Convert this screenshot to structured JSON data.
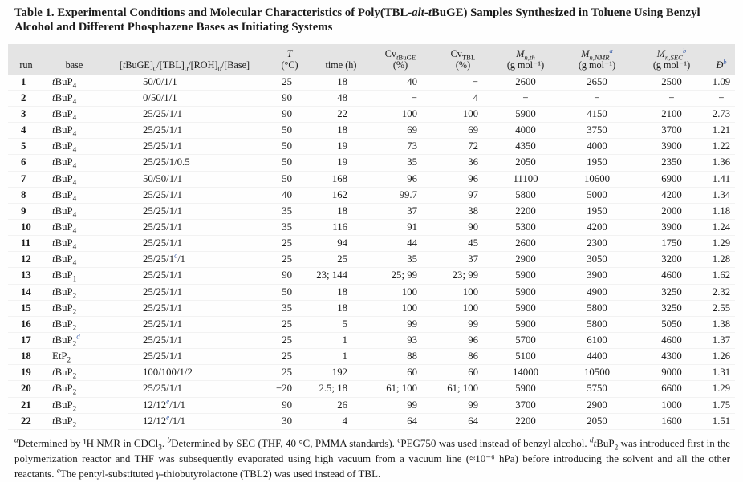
{
  "colors": {
    "accent_blue": "#3b5ea8",
    "header_bg": "#e4e4e4"
  },
  "title": {
    "segments": [
      [
        "Table 1. Experimental Conditions and Molecular Characteristics of Poly(TBL-",
        ""
      ],
      [
        "alt",
        "i"
      ],
      [
        "-",
        ""
      ],
      [
        "t",
        "i"
      ],
      [
        "BuGE) Samples Synthesized in Toluene Using Benzyl Alcohol and Different Phosphazene Bases as Initiating Systems",
        ""
      ]
    ]
  },
  "table": {
    "columns": [
      {
        "key": "run",
        "lines": [
          [
            [
              "run",
              ""
            ]
          ]
        ]
      },
      {
        "key": "base",
        "lines": [
          [
            [
              "base",
              ""
            ]
          ]
        ]
      },
      {
        "key": "ratio",
        "lines": [
          [
            [
              "[",
              ""
            ],
            [
              "t",
              "i"
            ],
            [
              "BuGE]",
              ""
            ],
            [
              "0",
              "sub"
            ],
            [
              "/[TBL]",
              ""
            ],
            [
              "0",
              "sub"
            ],
            [
              "/[ROH]",
              ""
            ],
            [
              "0",
              "sub"
            ],
            [
              "/[Base]",
              ""
            ]
          ]
        ]
      },
      {
        "key": "temp",
        "lines": [
          [
            [
              "T",
              "i"
            ]
          ],
          [
            [
              "(°C)",
              ""
            ]
          ]
        ]
      },
      {
        "key": "time",
        "lines": [
          [
            [
              "time (h)",
              ""
            ]
          ]
        ]
      },
      {
        "key": "cv_tbuge",
        "lines": [
          [
            [
              "Cv",
              ""
            ],
            [
              "t",
              "subi"
            ],
            [
              "BuGE",
              "sub"
            ]
          ],
          [
            [
              "(%)",
              ""
            ]
          ]
        ]
      },
      {
        "key": "cv_tbl",
        "lines": [
          [
            [
              "Cv",
              ""
            ],
            [
              "TBL",
              "sub"
            ]
          ],
          [
            [
              "(%)",
              ""
            ]
          ]
        ]
      },
      {
        "key": "mn_th",
        "lines": [
          [
            [
              "M",
              "i"
            ],
            [
              "n,th",
              "subi"
            ]
          ],
          [
            [
              "(g mol⁻¹)",
              ""
            ]
          ]
        ]
      },
      {
        "key": "mn_nmr",
        "lines": [
          [
            [
              "M",
              "i"
            ],
            [
              "n,NMR",
              "subi"
            ],
            [
              "a",
              "supb"
            ]
          ],
          [
            [
              "(g mol⁻¹)",
              ""
            ]
          ]
        ]
      },
      {
        "key": "mn_sec",
        "lines": [
          [
            [
              "M",
              "i"
            ],
            [
              "n,SEC",
              "subi"
            ],
            [
              "b",
              "supb"
            ]
          ],
          [
            [
              "(g mol⁻¹)",
              ""
            ]
          ]
        ]
      },
      {
        "key": "dispersity",
        "lines": [
          [
            [
              "Đ",
              "i"
            ],
            [
              "b",
              "supb"
            ]
          ]
        ]
      }
    ],
    "rows": [
      [
        "1",
        [
          [
            "t",
            "i"
          ],
          [
            "BuP",
            ""
          ],
          [
            "4",
            "sub"
          ]
        ],
        [
          [
            "50/0/1/1",
            ""
          ]
        ],
        "25",
        "18",
        "40",
        "−",
        "2600",
        "2650",
        "2500",
        "1.09"
      ],
      [
        "2",
        [
          [
            "t",
            "i"
          ],
          [
            "BuP",
            ""
          ],
          [
            "4",
            "sub"
          ]
        ],
        [
          [
            "0/50/1/1",
            ""
          ]
        ],
        "90",
        "48",
        "−",
        "4",
        "−",
        "−",
        "−",
        "−"
      ],
      [
        "3",
        [
          [
            "t",
            "i"
          ],
          [
            "BuP",
            ""
          ],
          [
            "4",
            "sub"
          ]
        ],
        [
          [
            "25/25/1/1",
            ""
          ]
        ],
        "90",
        "22",
        "100",
        "100",
        "5900",
        "4150",
        "2100",
        "2.73"
      ],
      [
        "4",
        [
          [
            "t",
            "i"
          ],
          [
            "BuP",
            ""
          ],
          [
            "4",
            "sub"
          ]
        ],
        [
          [
            "25/25/1/1",
            ""
          ]
        ],
        "50",
        "18",
        "69",
        "69",
        "4000",
        "3750",
        "3700",
        "1.21"
      ],
      [
        "5",
        [
          [
            "t",
            "i"
          ],
          [
            "BuP",
            ""
          ],
          [
            "4",
            "sub"
          ]
        ],
        [
          [
            "25/25/1/1",
            ""
          ]
        ],
        "50",
        "19",
        "73",
        "72",
        "4350",
        "4000",
        "3900",
        "1.22"
      ],
      [
        "6",
        [
          [
            "t",
            "i"
          ],
          [
            "BuP",
            ""
          ],
          [
            "4",
            "sub"
          ]
        ],
        [
          [
            "25/25/1/0.5",
            ""
          ]
        ],
        "50",
        "19",
        "35",
        "36",
        "2050",
        "1950",
        "2350",
        "1.36"
      ],
      [
        "7",
        [
          [
            "t",
            "i"
          ],
          [
            "BuP",
            ""
          ],
          [
            "4",
            "sub"
          ]
        ],
        [
          [
            "50/50/1/1",
            ""
          ]
        ],
        "50",
        "168",
        "96",
        "96",
        "11100",
        "10600",
        "6900",
        "1.41"
      ],
      [
        "8",
        [
          [
            "t",
            "i"
          ],
          [
            "BuP",
            ""
          ],
          [
            "4",
            "sub"
          ]
        ],
        [
          [
            "25/25/1/1",
            ""
          ]
        ],
        "40",
        "162",
        "99.7",
        "97",
        "5800",
        "5000",
        "4200",
        "1.34"
      ],
      [
        "9",
        [
          [
            "t",
            "i"
          ],
          [
            "BuP",
            ""
          ],
          [
            "4",
            "sub"
          ]
        ],
        [
          [
            "25/25/1/1",
            ""
          ]
        ],
        "35",
        "18",
        "37",
        "38",
        "2200",
        "1950",
        "2000",
        "1.18"
      ],
      [
        "10",
        [
          [
            "t",
            "i"
          ],
          [
            "BuP",
            ""
          ],
          [
            "4",
            "sub"
          ]
        ],
        [
          [
            "25/25/1/1",
            ""
          ]
        ],
        "35",
        "116",
        "91",
        "90",
        "5300",
        "4200",
        "3900",
        "1.24"
      ],
      [
        "11",
        [
          [
            "t",
            "i"
          ],
          [
            "BuP",
            ""
          ],
          [
            "4",
            "sub"
          ]
        ],
        [
          [
            "25/25/1/1",
            ""
          ]
        ],
        "25",
        "94",
        "44",
        "45",
        "2600",
        "2300",
        "1750",
        "1.29"
      ],
      [
        "12",
        [
          [
            "t",
            "i"
          ],
          [
            "BuP",
            ""
          ],
          [
            "4",
            "sub"
          ]
        ],
        [
          [
            "25/25/1",
            ""
          ],
          [
            "c",
            "supb"
          ],
          [
            "/1",
            ""
          ]
        ],
        "25",
        "25",
        "35",
        "37",
        "2900",
        "3050",
        "3200",
        "1.28"
      ],
      [
        "13",
        [
          [
            "t",
            "i"
          ],
          [
            "BuP",
            ""
          ],
          [
            "1",
            "sub"
          ]
        ],
        [
          [
            "25/25/1/1",
            ""
          ]
        ],
        "90",
        "23; 144",
        "25; 99",
        "23; 99",
        "5900",
        "3900",
        "4600",
        "1.62"
      ],
      [
        "14",
        [
          [
            "t",
            "i"
          ],
          [
            "BuP",
            ""
          ],
          [
            "2",
            "sub"
          ]
        ],
        [
          [
            "25/25/1/1",
            ""
          ]
        ],
        "50",
        "18",
        "100",
        "100",
        "5900",
        "4900",
        "3250",
        "2.32"
      ],
      [
        "15",
        [
          [
            "t",
            "i"
          ],
          [
            "BuP",
            ""
          ],
          [
            "2",
            "sub"
          ]
        ],
        [
          [
            "25/25/1/1",
            ""
          ]
        ],
        "35",
        "18",
        "100",
        "100",
        "5900",
        "5800",
        "3250",
        "2.55"
      ],
      [
        "16",
        [
          [
            "t",
            "i"
          ],
          [
            "BuP",
            ""
          ],
          [
            "2",
            "sub"
          ]
        ],
        [
          [
            "25/25/1/1",
            ""
          ]
        ],
        "25",
        "5",
        "99",
        "99",
        "5900",
        "5800",
        "5050",
        "1.38"
      ],
      [
        "17",
        [
          [
            "t",
            "i"
          ],
          [
            "BuP",
            ""
          ],
          [
            "2",
            "sub"
          ],
          [
            "d",
            "supb"
          ]
        ],
        [
          [
            "25/25/1/1",
            ""
          ]
        ],
        "25",
        "1",
        "93",
        "96",
        "5700",
        "6100",
        "4600",
        "1.37"
      ],
      [
        "18",
        [
          [
            "EtP",
            ""
          ],
          [
            "2",
            "sub"
          ]
        ],
        [
          [
            "25/25/1/1",
            ""
          ]
        ],
        "25",
        "1",
        "88",
        "86",
        "5100",
        "4400",
        "4300",
        "1.26"
      ],
      [
        "19",
        [
          [
            "t",
            "i"
          ],
          [
            "BuP",
            ""
          ],
          [
            "2",
            "sub"
          ]
        ],
        [
          [
            "100/100/1/2",
            ""
          ]
        ],
        "25",
        "192",
        "60",
        "60",
        "14000",
        "10500",
        "9000",
        "1.31"
      ],
      [
        "20",
        [
          [
            "t",
            "i"
          ],
          [
            "BuP",
            ""
          ],
          [
            "2",
            "sub"
          ]
        ],
        [
          [
            "25/25/1/1",
            ""
          ]
        ],
        "−20",
        "2.5; 18",
        "61; 100",
        "61; 100",
        "5900",
        "5750",
        "6600",
        "1.29"
      ],
      [
        "21",
        [
          [
            "t",
            "i"
          ],
          [
            "BuP",
            ""
          ],
          [
            "2",
            "sub"
          ]
        ],
        [
          [
            "12/12",
            ""
          ],
          [
            "e",
            "supb"
          ],
          [
            "/1/1",
            ""
          ]
        ],
        "90",
        "26",
        "99",
        "99",
        "3700",
        "2900",
        "1000",
        "1.75"
      ],
      [
        "22",
        [
          [
            "t",
            "i"
          ],
          [
            "BuP",
            ""
          ],
          [
            "2",
            "sub"
          ]
        ],
        [
          [
            "12/12",
            ""
          ],
          [
            "e",
            "supb"
          ],
          [
            "/1/1",
            ""
          ]
        ],
        "30",
        "4",
        "64",
        "64",
        "2200",
        "2050",
        "1600",
        "1.51"
      ]
    ]
  },
  "footnotes": {
    "segments": [
      [
        "a",
        "supi"
      ],
      [
        "Determined by ¹H NMR in CDCl",
        ""
      ],
      [
        "3",
        "sub"
      ],
      [
        ". ",
        ""
      ],
      [
        "b",
        "supi"
      ],
      [
        "Determined by SEC (THF, 40 °C, PMMA standards). ",
        ""
      ],
      [
        "c",
        "supi"
      ],
      [
        "PEG750 was used instead of benzyl alcohol. ",
        ""
      ],
      [
        "d",
        "supi"
      ],
      [
        "t",
        "i"
      ],
      [
        "BuP",
        ""
      ],
      [
        "2",
        "sub"
      ],
      [
        " was introduced first in the polymerization reactor and THF was subsequently evaporated using high vacuum from a vacuum line (≈10⁻⁶ hPa) before introducing the solvent and all the other reactants. ",
        ""
      ],
      [
        "e",
        "supi"
      ],
      [
        "The pentyl-substituted ",
        ""
      ],
      [
        "γ",
        "i"
      ],
      [
        "-thiobutyrolactone (TBL2) was used instead of TBL.",
        ""
      ]
    ]
  }
}
